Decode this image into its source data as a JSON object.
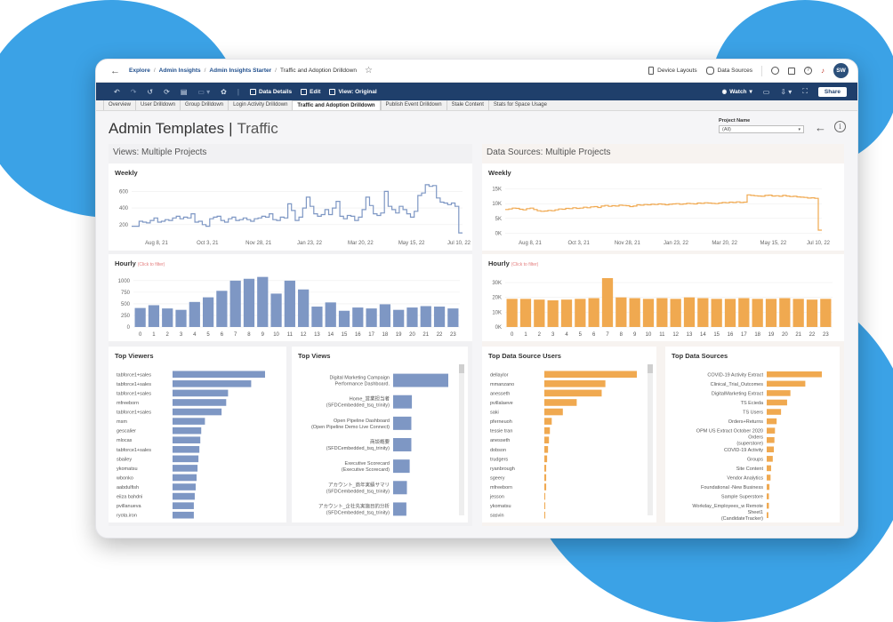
{
  "colors": {
    "blue": "#7e97c4",
    "orange": "#f0a950",
    "navy": "#1f3f6b",
    "background_blue": "#3ba2e6"
  },
  "topbar": {
    "breadcrumbs": [
      "Explore",
      "Admin Insights",
      "Admin Insights Starter"
    ],
    "current": "Traffic and Adoption Drilldown",
    "device_layouts": "Device Layouts",
    "data_sources": "Data Sources",
    "avatar": "SW"
  },
  "toolbar": {
    "data_details": "Data Details",
    "edit": "Edit",
    "view": "View: Original",
    "watch": "Watch",
    "share": "Share"
  },
  "tabs": [
    {
      "label": "Overview",
      "active": false
    },
    {
      "label": "User Drilldown",
      "active": false
    },
    {
      "label": "Group Drilldown",
      "active": false
    },
    {
      "label": "Login Activity Drilldown",
      "active": false
    },
    {
      "label": "Traffic and Adoption Drilldown",
      "active": true
    },
    {
      "label": "Publish Event Drilldown",
      "active": false
    },
    {
      "label": "Stale Content",
      "active": false
    },
    {
      "label": "Stats for Space Usage",
      "active": false
    }
  ],
  "header": {
    "title": "Admin Templates",
    "subtitle": "Traffic",
    "project_filter_label": "Project Name",
    "project_filter_value": "(All)"
  },
  "sections": {
    "views_title": "Views: Multiple Projects",
    "ds_title": "Data Sources: Multiple Projects"
  },
  "chart_data": [
    {
      "id": "views_weekly",
      "type": "line",
      "title": "Weekly",
      "color": "#7e97c4",
      "x_ticks": [
        "Aug 8, 21",
        "Oct 3, 21",
        "Nov 28, 21",
        "Jan 23, 22",
        "Mar 20, 22",
        "May 15, 22",
        "Jul 10, 22"
      ],
      "y_ticks": [
        200,
        400,
        600
      ],
      "ylim": [
        80,
        700
      ],
      "values": [
        180,
        180,
        240,
        230,
        220,
        250,
        280,
        230,
        240,
        260,
        250,
        280,
        300,
        270,
        290,
        280,
        330,
        230,
        240,
        200,
        180,
        270,
        290,
        300,
        250,
        230,
        270,
        290,
        250,
        260,
        280,
        260,
        240,
        270,
        280,
        300,
        290,
        330,
        260,
        250,
        290,
        280,
        450,
        370,
        250,
        290,
        400,
        530,
        420,
        330,
        300,
        320,
        380,
        320,
        400,
        480,
        300,
        270,
        310,
        300,
        250,
        290,
        380,
        530,
        430,
        330,
        310,
        340,
        600,
        420,
        380,
        340,
        420,
        380,
        330,
        290,
        360,
        550,
        580,
        680,
        660,
        670,
        520,
        470,
        460,
        440,
        460,
        420,
        100
      ]
    },
    {
      "id": "views_hourly",
      "type": "bar",
      "title": "Hourly",
      "hint": "(Click to filter)",
      "color": "#7e97c4",
      "categories": [
        "0",
        "1",
        "2",
        "3",
        "4",
        "5",
        "6",
        "7",
        "8",
        "9",
        "10",
        "11",
        "12",
        "13",
        "14",
        "15",
        "16",
        "17",
        "18",
        "19",
        "20",
        "21",
        "22",
        "23"
      ],
      "values": [
        410,
        470,
        400,
        370,
        540,
        640,
        780,
        1000,
        1040,
        1080,
        720,
        1000,
        810,
        440,
        530,
        350,
        420,
        400,
        490,
        370,
        420,
        450,
        440,
        400
      ],
      "y_ticks": [
        0,
        250,
        500,
        750,
        1000
      ],
      "ylim": [
        0,
        1150
      ]
    },
    {
      "id": "ds_weekly",
      "type": "line",
      "title": "Weekly",
      "color": "#f0a950",
      "x_ticks": [
        "Aug 8, 21",
        "Oct 3, 21",
        "Nov 28, 21",
        "Jan 23, 22",
        "Mar 20, 22",
        "May 15, 22",
        "Jul 10, 22"
      ],
      "y_ticks": [
        "0K",
        "5K",
        "10K",
        "15K"
      ],
      "y_tick_values": [
        0,
        5000,
        10000,
        15000
      ],
      "ylim": [
        -500,
        17000
      ],
      "values": [
        8000,
        8200,
        8500,
        8400,
        8100,
        7900,
        8300,
        8500,
        8000,
        7600,
        7400,
        7500,
        7700,
        7600,
        7900,
        8200,
        8100,
        8400,
        8300,
        8600,
        8400,
        8500,
        8800,
        8600,
        8900,
        9000,
        8700,
        9200,
        9400,
        9100,
        9300,
        9200,
        9500,
        9400,
        9300,
        9000,
        9200,
        9600,
        9500,
        9700,
        9600,
        9800,
        9700,
        9900,
        9800,
        9600,
        9800,
        9900,
        10000,
        9800,
        9900,
        10100,
        10000,
        9900,
        10200,
        10100,
        10300,
        10200,
        10100,
        10000,
        10200,
        10400,
        10300,
        10500,
        10400,
        10600,
        10400,
        10500,
        13000,
        12800,
        12700,
        12600,
        12500,
        12800,
        12900,
        12600,
        12700,
        12500,
        12800,
        12600,
        12400,
        12500,
        12300,
        12200,
        12100,
        11900,
        12000,
        11800,
        1000
      ]
    },
    {
      "id": "ds_hourly",
      "type": "bar",
      "title": "Hourly",
      "hint": "(Click to filter)",
      "color": "#f0a950",
      "categories": [
        "0",
        "1",
        "2",
        "3",
        "4",
        "5",
        "6",
        "7",
        "8",
        "9",
        "10",
        "11",
        "12",
        "13",
        "14",
        "15",
        "16",
        "17",
        "18",
        "19",
        "20",
        "21",
        "22",
        "23"
      ],
      "values": [
        19000,
        19000,
        18500,
        18000,
        18500,
        19000,
        19500,
        33000,
        20000,
        19500,
        19000,
        19500,
        19000,
        20000,
        19500,
        19000,
        19000,
        19500,
        19000,
        19000,
        19500,
        19000,
        18500,
        19000
      ],
      "y_ticks": [
        "0K",
        "10K",
        "20K",
        "30K"
      ],
      "y_tick_values": [
        0,
        10000,
        20000,
        30000
      ],
      "ylim": [
        0,
        36000
      ]
    },
    {
      "id": "top_viewers",
      "type": "bar",
      "orientation": "horizontal",
      "title": "Top Viewers",
      "color": "#7e97c4",
      "categories": [
        "tabforce1+sales",
        "tabforce1+sales",
        "tabforce1+sales",
        "mfreeborn",
        "tabforce1+sales",
        "msm",
        "gescalier",
        "mlocas",
        "tabforce1+sales",
        "sbailey",
        "ykomatsu",
        "wbonko",
        "aabdulfish",
        "eiiza bahdni",
        "pvillanueva",
        "ryota.iron"
      ],
      "values": [
        100,
        85,
        60,
        58,
        53,
        35,
        31,
        30,
        29,
        28,
        27,
        26,
        25,
        24,
        23,
        23
      ]
    },
    {
      "id": "top_views",
      "type": "bar",
      "orientation": "horizontal",
      "title": "Top Views",
      "color": "#7e97c4",
      "categories": [
        "Digital Marketing Campaign Performance Dashboard.",
        "Home_営業担当者 (SFDCembedded_tsq_trinity)",
        "Open Pipeline Dashboard (Open Pipeline Demo Live Connect)",
        "商談概要 (SFDCembedded_tsq_trinity)",
        "Executive Scorecard (Executive Scorecard)",
        "アカウント_商年実績サマリ (SFDCembedded_tsq_trinity)",
        "アカウント_企社先実施目的分析 (SFDCembedded_tsq_trinity)"
      ],
      "values": [
        100,
        34,
        33,
        33,
        30,
        25,
        24
      ]
    },
    {
      "id": "top_ds_users",
      "type": "bar",
      "orientation": "horizontal",
      "title": "Top Data Source Users",
      "color": "#f0a950",
      "categories": [
        "dellaylor",
        "mmanzano",
        "anesseth",
        "pvillalaeve",
        "saki",
        "pferneuoh",
        "tessie tran",
        "anesseth",
        "dobson",
        "trudgers",
        "ryanbrough",
        "sgeery",
        "mfreeborn",
        "jesson",
        "ykomatsu",
        "sasvin"
      ],
      "values": [
        100,
        66,
        62,
        35,
        20,
        8,
        6,
        5,
        4,
        3,
        2,
        2,
        2,
        1,
        1,
        1
      ]
    },
    {
      "id": "top_data_sources",
      "type": "bar",
      "orientation": "horizontal",
      "title": "Top Data Sources",
      "color": "#f0a950",
      "categories": [
        "COVID-19 Activity Extract",
        "Clinical_Trial_Outcomes",
        "DigitalMarketing Extract",
        "TS Ecieda",
        "TS Users",
        "Orders+Returns",
        "OPM US Extract October 2020",
        "Orders (superstore)",
        "COVID-19 Activity",
        "Groups",
        "Site Content",
        "Vendor Analytics",
        "Foundational -New Business",
        "Sample Superstore",
        "Workday_Employees_w Remote",
        "Sheet1 (CandidateTracker)"
      ],
      "values": [
        100,
        70,
        43,
        37,
        26,
        18,
        15,
        14,
        13,
        11,
        8,
        7,
        5,
        4,
        4,
        3
      ]
    }
  ]
}
